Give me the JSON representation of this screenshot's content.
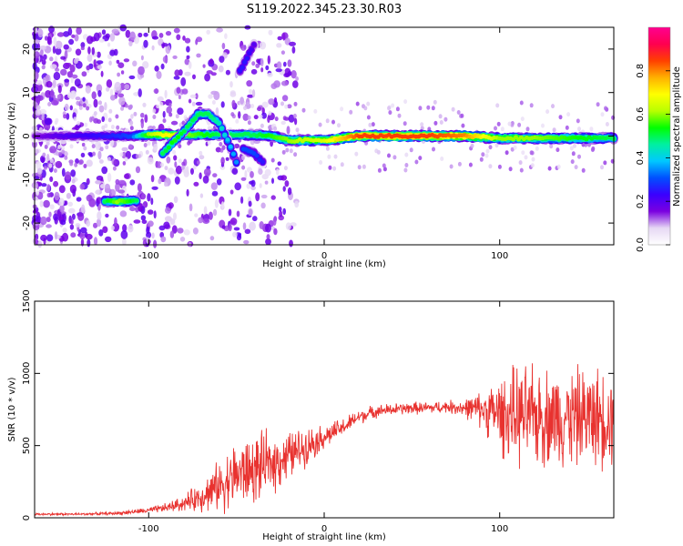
{
  "title": "S119.2022.345.23.30.R03",
  "colors": {
    "snr_line": "#e8322f",
    "colorbar": [
      "#ffffff",
      "#e6d8f4",
      "#7a00e0",
      "#3a00ff",
      "#0050ff",
      "#00c8ff",
      "#00f0a0",
      "#00ff00",
      "#b8ff00",
      "#ffff00",
      "#ffb000",
      "#ff4000",
      "#ff0050",
      "#ff0090"
    ]
  },
  "chart_data": [
    {
      "type": "heatmap",
      "title": "",
      "xlabel": "Height of straight line (km)",
      "ylabel": "Frequency (Hz)",
      "xlim": [
        -165,
        165
      ],
      "ylim": [
        -25,
        25
      ],
      "xticks": [
        -100,
        0,
        100
      ],
      "yticks": [
        -20,
        -10,
        0,
        10,
        20
      ],
      "colorbar": {
        "label": "Normalized spectral amplitude",
        "range": [
          0,
          1
        ],
        "ticks": [
          "0.0",
          "0.2",
          "0.4",
          "0.6",
          "0.8"
        ],
        "tick_values": [
          0,
          0.2,
          0.4,
          0.6,
          0.8
        ]
      },
      "ridges": [
        {
          "x": [
            -165,
            -150,
            -125,
            -110,
            -100,
            -90,
            -80,
            -70,
            -60,
            -50,
            -40,
            -30,
            -20,
            0,
            20,
            40,
            60,
            80,
            100,
            120,
            140,
            165
          ],
          "y": [
            0,
            0,
            0,
            0,
            0.3,
            0.3,
            0.3,
            0.3,
            0.3,
            0.3,
            0.3,
            0,
            -1,
            -1,
            0,
            0,
            0,
            0,
            -0.5,
            -0.5,
            -0.5,
            -0.5
          ],
          "amp": [
            0.15,
            0.2,
            0.25,
            0.3,
            0.6,
            0.7,
            0.6,
            0.55,
            0.5,
            0.5,
            0.5,
            0.55,
            0.6,
            0.65,
            0.85,
            0.85,
            0.85,
            0.8,
            0.6,
            0.6,
            0.55,
            0.5
          ]
        },
        {
          "x": [
            -125,
            -118,
            -112,
            -107
          ],
          "y": [
            -15,
            -15,
            -15,
            -15
          ],
          "amp": [
            0.5,
            0.6,
            0.55,
            0.5
          ]
        },
        {
          "x": [
            -92,
            -85,
            -78,
            -72,
            -66,
            -60,
            -55,
            -50
          ],
          "y": [
            -4,
            -1,
            2,
            5,
            5,
            3,
            -1,
            -6
          ],
          "amp": [
            0.5,
            0.55,
            0.5,
            0.5,
            0.5,
            0.45,
            0.4,
            0.35
          ]
        },
        {
          "x": [
            -48,
            -44,
            -40
          ],
          "y": [
            15,
            18,
            21
          ],
          "amp": [
            0.25,
            0.25,
            0.2
          ]
        },
        {
          "x": [
            -46,
            -40,
            -35
          ],
          "y": [
            -3,
            -4,
            -6
          ],
          "amp": [
            0.3,
            0.3,
            0.25
          ]
        }
      ]
    },
    {
      "type": "line",
      "title": "",
      "xlabel": "Height of straight line (km)",
      "ylabel": "SNR (10 * v/v)",
      "xlim": [
        -165,
        165
      ],
      "ylim": [
        0,
        1500
      ],
      "xticks": [
        -100,
        0,
        100
      ],
      "yticks": [
        0,
        500,
        1000,
        1500
      ],
      "series": [
        {
          "name": "SNR",
          "x": [
            -165,
            -140,
            -120,
            -110,
            -100,
            -90,
            -80,
            -70,
            -60,
            -50,
            -40,
            -30,
            -20,
            -10,
            0,
            10,
            20,
            30,
            40,
            50,
            60,
            70,
            80,
            90,
            100,
            110,
            120,
            130,
            140,
            150,
            160,
            165
          ],
          "values": [
            25,
            25,
            30,
            40,
            50,
            70,
            100,
            150,
            220,
            300,
            330,
            380,
            430,
            500,
            560,
            620,
            700,
            740,
            750,
            760,
            760,
            770,
            760,
            750,
            720,
            700,
            700,
            700,
            700,
            700,
            700,
            700
          ],
          "spread": [
            8,
            8,
            10,
            15,
            20,
            30,
            50,
            100,
            160,
            220,
            220,
            200,
            160,
            120,
            80,
            60,
            50,
            40,
            40,
            40,
            40,
            40,
            60,
            120,
            250,
            320,
            320,
            320,
            320,
            320,
            320,
            320
          ]
        }
      ]
    }
  ]
}
